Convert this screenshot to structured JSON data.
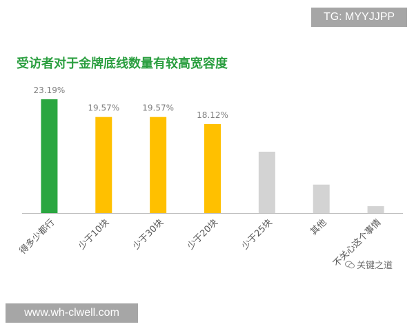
{
  "badges": {
    "top_right": "TG: MYYJJPP",
    "bottom_left": "www.wh-clwell.com"
  },
  "watermark": {
    "text": "关键之道",
    "icon": "wechat-icon"
  },
  "colors": {
    "title": "#2a9e3f",
    "green": "#2aa640",
    "yellow": "#ffc000",
    "gray": "#d3d3d3",
    "axis": "#bfbfbf",
    "label_text": "#7f7f7f"
  },
  "chart_data": {
    "type": "bar",
    "title": "受访者对于金牌底线数量有较高宽容度",
    "xlabel": "",
    "ylabel": "",
    "ylim": [
      0,
      25
    ],
    "grid": false,
    "categories": [
      "得多少都行",
      "少于10块",
      "少于30块",
      "少于20块",
      "少于25块",
      "其他",
      "不关心这个事情"
    ],
    "values": [
      23.19,
      19.57,
      19.57,
      18.12,
      12.5,
      5.8,
      1.4
    ],
    "data_labels": [
      "23.19%",
      "19.57%",
      "19.57%",
      "18.12%",
      "",
      "",
      ""
    ],
    "bar_colors": [
      "#2aa640",
      "#ffc000",
      "#ffc000",
      "#ffc000",
      "#d3d3d3",
      "#d3d3d3",
      "#d3d3d3"
    ]
  }
}
